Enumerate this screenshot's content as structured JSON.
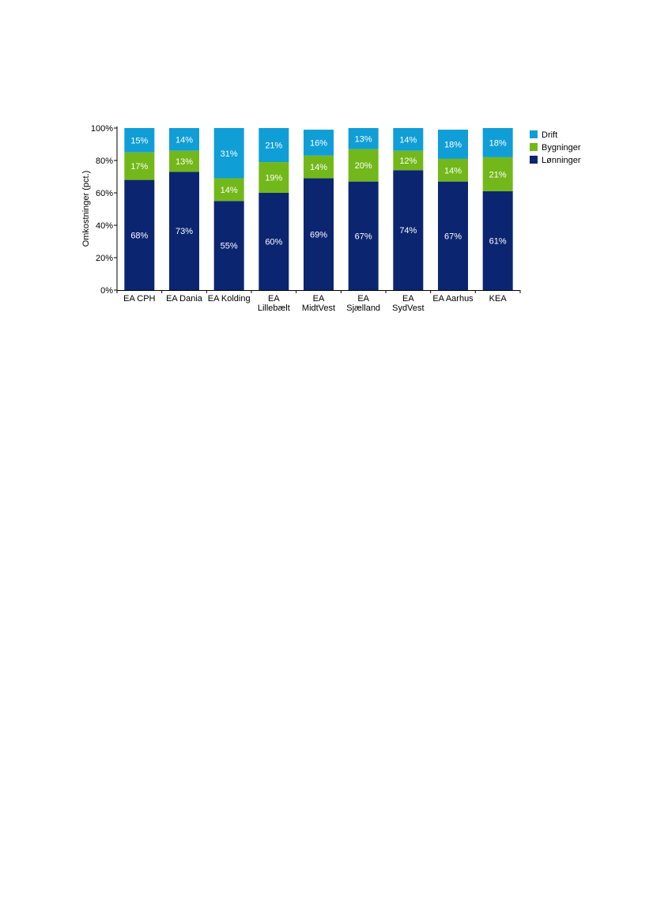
{
  "chart_data": {
    "type": "bar",
    "stacked": true,
    "title": "",
    "xlabel": "",
    "ylabel": "Omkostninger (pct.)",
    "ylim": [
      0,
      100
    ],
    "yticks": [
      "0%",
      "20%",
      "40%",
      "60%",
      "80%",
      "100%"
    ],
    "grid": false,
    "legend_position": "right",
    "categories": [
      [
        "EA CPH"
      ],
      [
        "EA Dania"
      ],
      [
        "EA Kolding"
      ],
      [
        "EA",
        "Lillebælt"
      ],
      [
        "EA",
        "MidtVest"
      ],
      [
        "EA",
        "Sjælland"
      ],
      [
        "EA",
        "SydVest"
      ],
      [
        "EA Aarhus"
      ],
      [
        "KEA"
      ]
    ],
    "series": [
      {
        "name": "Lønninger",
        "color": "#0b2570",
        "values": [
          68,
          73,
          55,
          60,
          69,
          67,
          74,
          67,
          61
        ],
        "labels": [
          "68%",
          "73%",
          "55%",
          "60%",
          "69%",
          "67%",
          "74%",
          "67%",
          "61%"
        ]
      },
      {
        "name": "Bygninger",
        "color": "#73b81a",
        "values": [
          17,
          13,
          14,
          19,
          14,
          20,
          12,
          14,
          21
        ],
        "labels": [
          "17%",
          "13%",
          "14%",
          "19%",
          "14%",
          "20%",
          "12%",
          "14%",
          "21%"
        ]
      },
      {
        "name": "Drift",
        "color": "#109ed6",
        "values": [
          15,
          14,
          31,
          21,
          16,
          13,
          14,
          18,
          18
        ],
        "labels": [
          "15%",
          "14%",
          "31%",
          "21%",
          "16%",
          "13%",
          "14%",
          "18%",
          "18%"
        ]
      }
    ],
    "legend_order": [
      "Drift",
      "Bygninger",
      "Lønninger"
    ]
  }
}
